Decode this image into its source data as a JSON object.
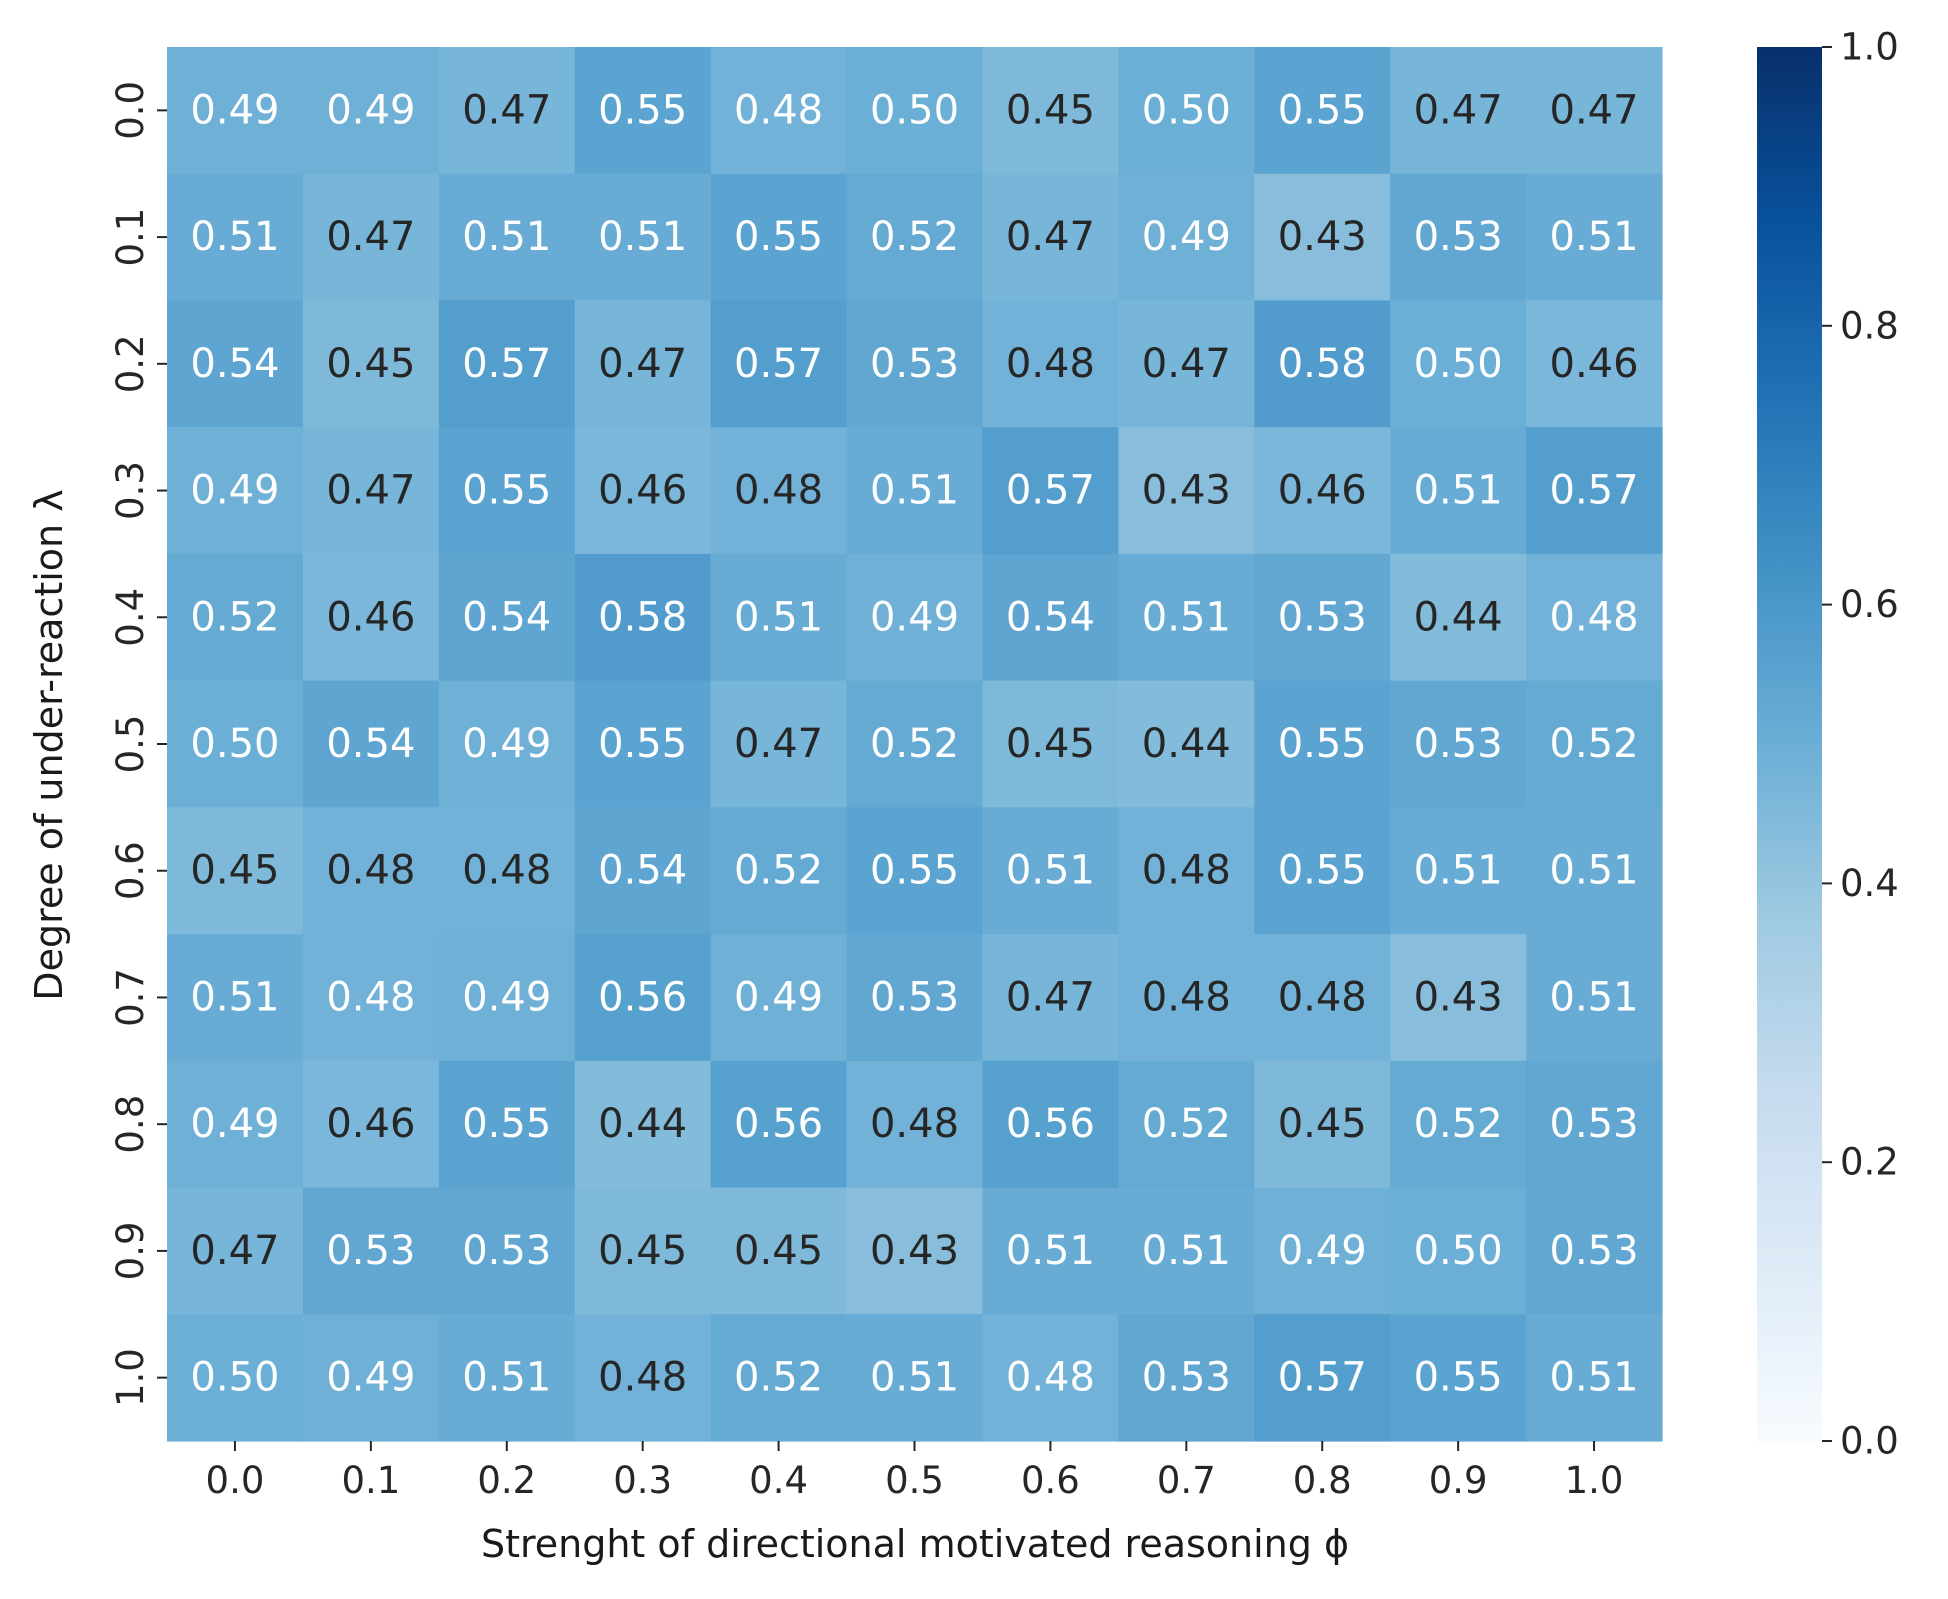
{
  "chart_data": {
    "type": "heatmap",
    "title": "",
    "xlabel": "Strenght of directional motivated reasoning ϕ",
    "ylabel": "Degree of under-reaction λ",
    "x_categories": [
      "0.0",
      "0.1",
      "0.2",
      "0.3",
      "0.4",
      "0.5",
      "0.6",
      "0.7",
      "0.8",
      "0.9",
      "1.0"
    ],
    "y_categories": [
      "0.0",
      "0.1",
      "0.2",
      "0.3",
      "0.4",
      "0.5",
      "0.6",
      "0.7",
      "0.8",
      "0.9",
      "1.0"
    ],
    "values": [
      [
        0.49,
        0.49,
        0.47,
        0.55,
        0.48,
        0.5,
        0.45,
        0.5,
        0.55,
        0.47,
        0.47
      ],
      [
        0.51,
        0.47,
        0.51,
        0.51,
        0.55,
        0.52,
        0.47,
        0.49,
        0.43,
        0.53,
        0.51
      ],
      [
        0.54,
        0.45,
        0.57,
        0.47,
        0.57,
        0.53,
        0.48,
        0.47,
        0.58,
        0.5,
        0.46
      ],
      [
        0.49,
        0.47,
        0.55,
        0.46,
        0.48,
        0.51,
        0.57,
        0.43,
        0.46,
        0.51,
        0.57
      ],
      [
        0.52,
        0.46,
        0.54,
        0.58,
        0.51,
        0.49,
        0.54,
        0.51,
        0.53,
        0.44,
        0.48
      ],
      [
        0.5,
        0.54,
        0.49,
        0.55,
        0.47,
        0.52,
        0.45,
        0.44,
        0.55,
        0.53,
        0.52
      ],
      [
        0.45,
        0.48,
        0.48,
        0.54,
        0.52,
        0.55,
        0.51,
        0.48,
        0.55,
        0.51,
        0.51
      ],
      [
        0.51,
        0.48,
        0.49,
        0.56,
        0.49,
        0.53,
        0.47,
        0.48,
        0.48,
        0.43,
        0.51
      ],
      [
        0.49,
        0.46,
        0.55,
        0.44,
        0.56,
        0.48,
        0.56,
        0.52,
        0.45,
        0.52,
        0.53
      ],
      [
        0.47,
        0.53,
        0.53,
        0.45,
        0.45,
        0.43,
        0.51,
        0.51,
        0.49,
        0.5,
        0.53
      ],
      [
        0.5,
        0.49,
        0.51,
        0.48,
        0.52,
        0.51,
        0.48,
        0.53,
        0.57,
        0.55,
        0.51
      ]
    ],
    "dark_text_cells": [
      [
        0,
        2
      ],
      [
        0,
        6
      ],
      [
        0,
        9
      ],
      [
        0,
        10
      ],
      [
        1,
        1
      ],
      [
        1,
        6
      ],
      [
        1,
        8
      ],
      [
        2,
        1
      ],
      [
        2,
        3
      ],
      [
        2,
        6
      ],
      [
        2,
        7
      ],
      [
        2,
        10
      ],
      [
        3,
        1
      ],
      [
        3,
        3
      ],
      [
        3,
        4
      ],
      [
        3,
        7
      ],
      [
        3,
        8
      ],
      [
        4,
        1
      ],
      [
        4,
        9
      ],
      [
        5,
        4
      ],
      [
        5,
        6
      ],
      [
        5,
        7
      ],
      [
        6,
        0
      ],
      [
        6,
        1
      ],
      [
        6,
        2
      ],
      [
        6,
        7
      ],
      [
        7,
        6
      ],
      [
        7,
        7
      ],
      [
        7,
        8
      ],
      [
        7,
        9
      ],
      [
        8,
        1
      ],
      [
        8,
        3
      ],
      [
        8,
        5
      ],
      [
        8,
        8
      ],
      [
        9,
        0
      ],
      [
        9,
        3
      ],
      [
        9,
        4
      ],
      [
        9,
        5
      ],
      [
        10,
        3
      ]
    ],
    "value_range": [
      0.0,
      1.0
    ],
    "colormap": "Blues",
    "colorbar": {
      "ticks": [
        "0.0",
        "0.2",
        "0.4",
        "0.6",
        "0.8",
        "1.0"
      ],
      "tick_values": [
        0.0,
        0.2,
        0.4,
        0.6,
        0.8,
        1.0
      ]
    },
    "annotation_colors": {
      "light": "#ffffff",
      "dark": "#262626"
    },
    "grid": false,
    "legend": "colorbar-right"
  }
}
